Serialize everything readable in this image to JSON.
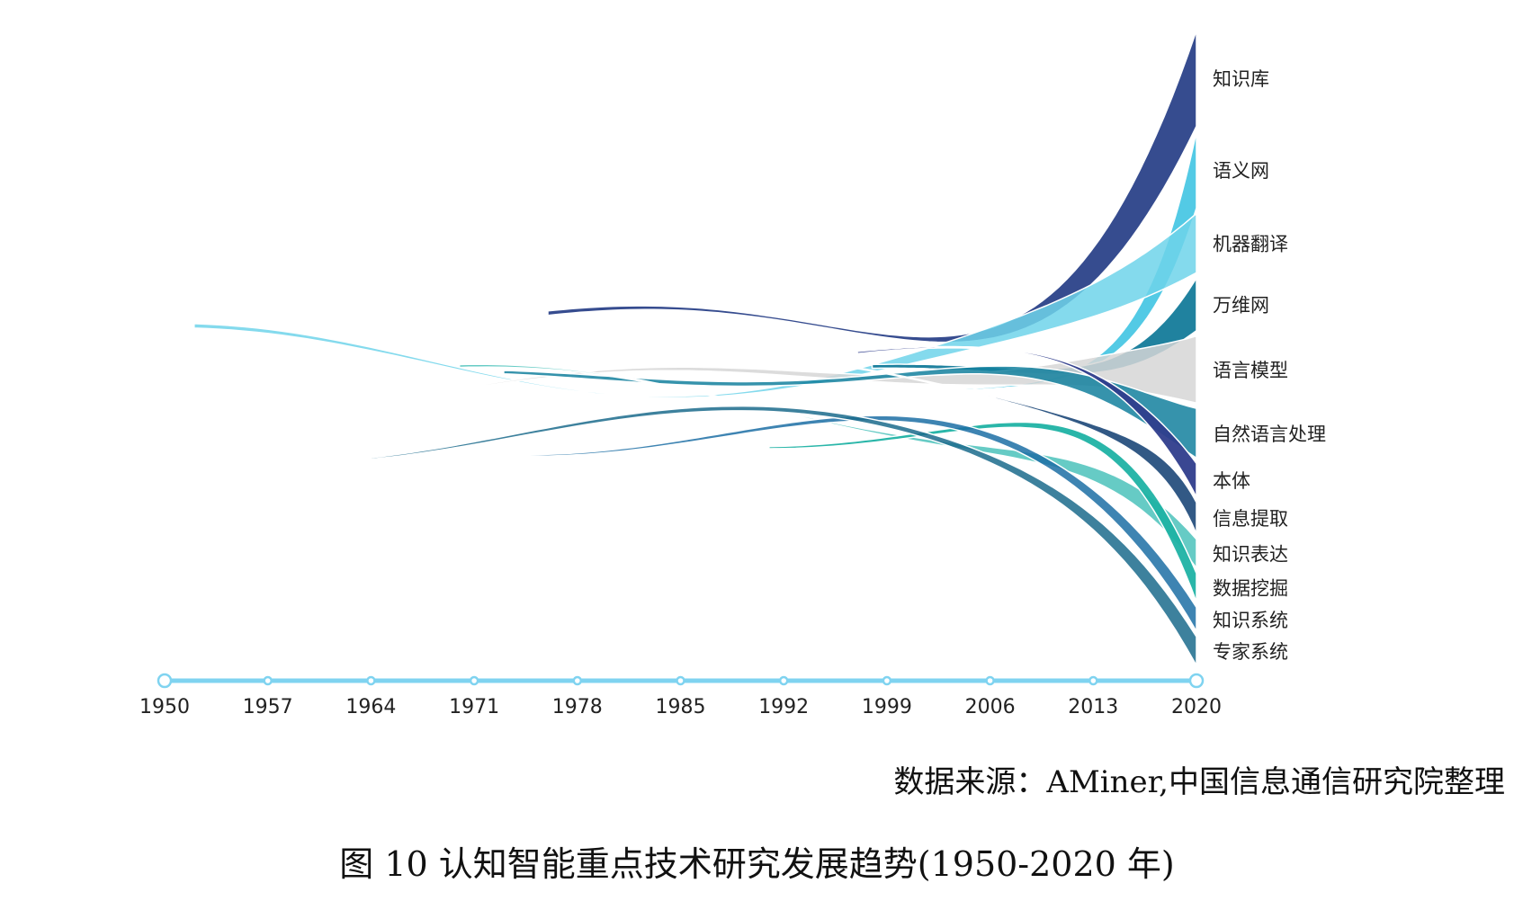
{
  "chart_data": {
    "type": "area",
    "subtype": "theme-river",
    "title": "",
    "xlabel": "",
    "ylabel": "",
    "x_ticks": [
      "1950",
      "1957",
      "1964",
      "1971",
      "1978",
      "1985",
      "1992",
      "1999",
      "2006",
      "2013",
      "2020"
    ],
    "xlim": [
      1950,
      2020
    ],
    "legend_position": "right-end",
    "series": [
      {
        "name": "知识库",
        "color": "#2b4289",
        "start": 1976,
        "end_value": 100
      },
      {
        "name": "语义网",
        "color": "#35c1e0",
        "start": 2001,
        "end_value": 80
      },
      {
        "name": "机器翻译",
        "color": "#6fd3ea",
        "start": 1952,
        "end_value": 62
      },
      {
        "name": "万维网",
        "color": "#147b9a",
        "start": 1998,
        "end_value": 55
      },
      {
        "name": "语言模型",
        "color": "#d6d6d6",
        "start": 1969,
        "end_value": 70
      },
      {
        "name": "自然语言处理",
        "color": "#13809e",
        "start": 1973,
        "end_value": 52
      },
      {
        "name": "本体",
        "color": "#2f3d8c",
        "start": 1997,
        "end_value": 35
      },
      {
        "name": "信息提取",
        "color": "#0e3c70",
        "start": 1996,
        "end_value": 33
      },
      {
        "name": "知识表达",
        "color": "#4bc2bb",
        "start": 1970,
        "end_value": 30
      },
      {
        "name": "数据挖掘",
        "color": "#1fb2a4",
        "start": 1991,
        "end_value": 30
      },
      {
        "name": "知识系统",
        "color": "#1c6fa4",
        "start": 1969,
        "end_value": 25
      },
      {
        "name": "专家系统",
        "color": "#1b6b8c",
        "start": 1964,
        "end_value": 30
      }
    ],
    "axis_color": "#7fd3f0"
  },
  "source_note": "数据来源：AMiner,中国信息通信研究院整理",
  "caption": "图  10 认知智能重点技术研究发展趋势(1950-2020 年)"
}
